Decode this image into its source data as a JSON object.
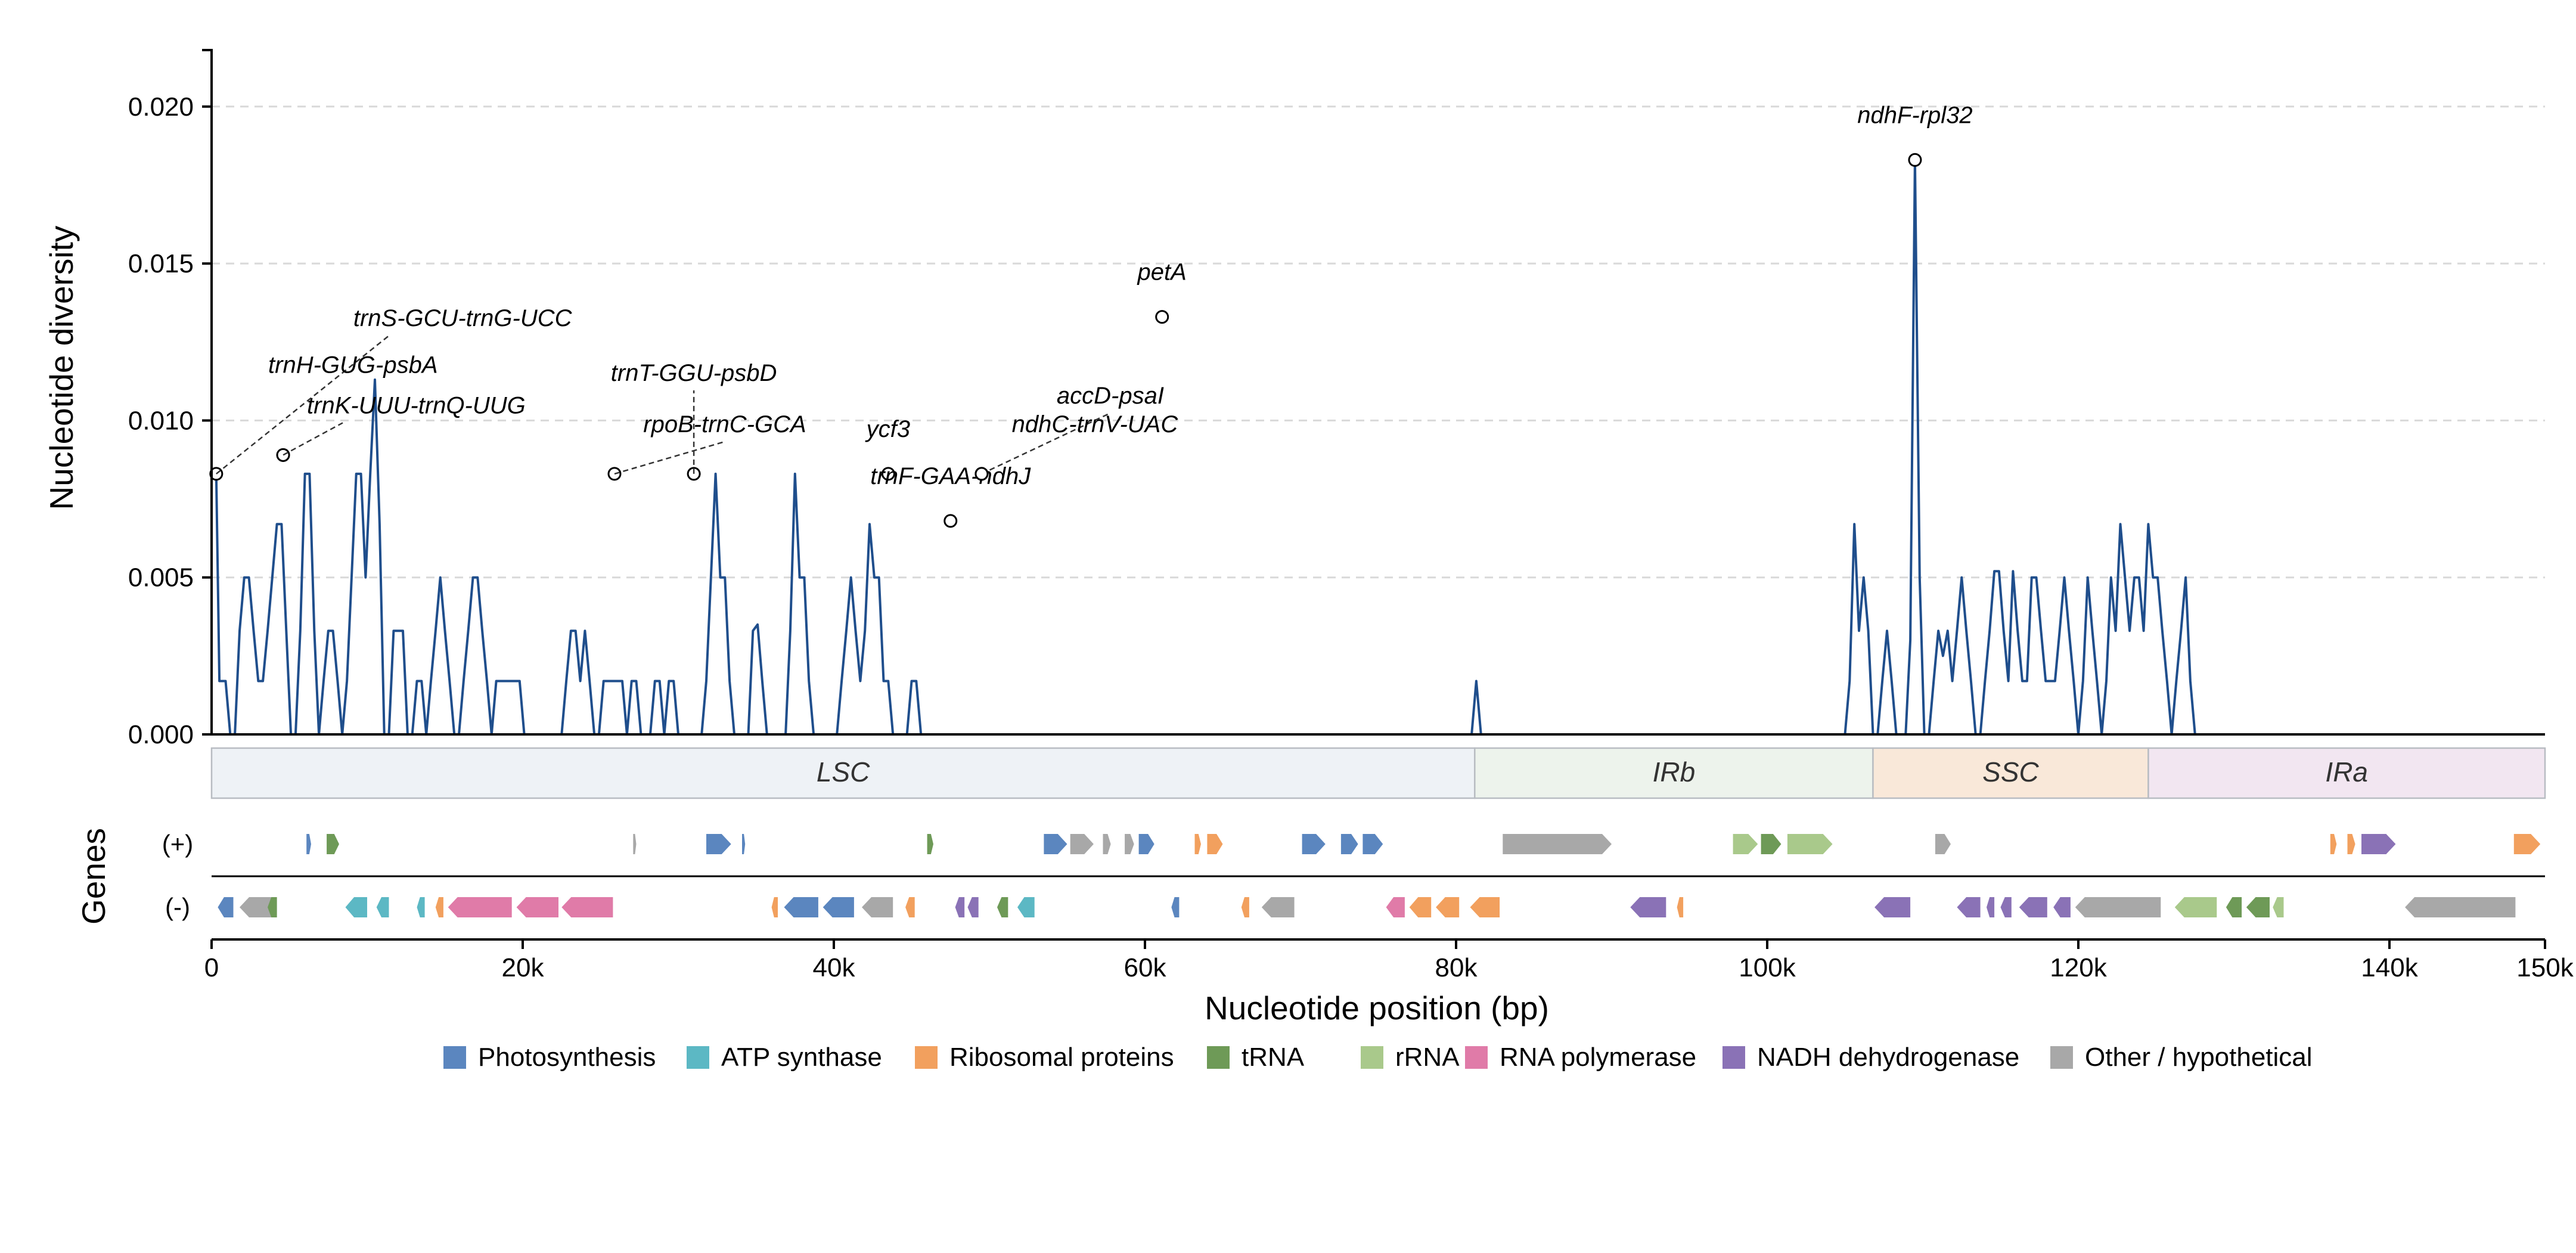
{
  "chart_data": {
    "type": "line",
    "ylabel": "Nucleotide diversity",
    "xlabel": "Nucleotide position (bp)",
    "gene_track_label": "Genes",
    "strand_labels": {
      "plus": "(+)",
      "minus": "(-)"
    },
    "xlim": [
      0,
      150000
    ],
    "ylim": [
      0,
      0.0218
    ],
    "y_ticks": [
      {
        "value": 0.0,
        "label": "0.000"
      },
      {
        "value": 0.005,
        "label": "0.005"
      },
      {
        "value": 0.01,
        "label": "0.010"
      },
      {
        "value": 0.015,
        "label": "0.015"
      },
      {
        "value": 0.02,
        "label": "0.020"
      }
    ],
    "x_ticks": [
      {
        "value": 0,
        "label": "0"
      },
      {
        "value": 20000,
        "label": "20k"
      },
      {
        "value": 40000,
        "label": "40k"
      },
      {
        "value": 60000,
        "label": "60k"
      },
      {
        "value": 80000,
        "label": "80k"
      },
      {
        "value": 100000,
        "label": "100k"
      },
      {
        "value": 120000,
        "label": "120k"
      },
      {
        "value": 140000,
        "label": "140k"
      },
      {
        "value": 150000,
        "label": "150k"
      }
    ],
    "y_grid": true,
    "line_color": "#1f4e8c",
    "series": [
      {
        "values": [
          [
            0,
            0.0083
          ],
          [
            300,
            0.0083
          ],
          [
            500,
            0.0017
          ],
          [
            900,
            0.0017
          ],
          [
            1200,
            0
          ],
          [
            1500,
            0
          ],
          [
            1800,
            0.0033
          ],
          [
            2100,
            0.005
          ],
          [
            2400,
            0.005
          ],
          [
            2700,
            0.0033
          ],
          [
            3000,
            0.0017
          ],
          [
            3300,
            0.0017
          ],
          [
            3600,
            0.0033
          ],
          [
            3900,
            0.005
          ],
          [
            4200,
            0.0067
          ],
          [
            4500,
            0.0067
          ],
          [
            4800,
            0.0033
          ],
          [
            5100,
            0
          ],
          [
            5400,
            0
          ],
          [
            5700,
            0.0033
          ],
          [
            6000,
            0.0083
          ],
          [
            6300,
            0.0083
          ],
          [
            6600,
            0.0033
          ],
          [
            6900,
            0
          ],
          [
            7200,
            0.0017
          ],
          [
            7500,
            0.0033
          ],
          [
            7800,
            0.0033
          ],
          [
            8100,
            0.0017
          ],
          [
            8400,
            0
          ],
          [
            8700,
            0.0017
          ],
          [
            9000,
            0.005
          ],
          [
            9300,
            0.0083
          ],
          [
            9600,
            0.0083
          ],
          [
            9900,
            0.005
          ],
          [
            10200,
            0.0083
          ],
          [
            10500,
            0.0113
          ],
          [
            10800,
            0.0067
          ],
          [
            11100,
            0
          ],
          [
            11400,
            0
          ],
          [
            11700,
            0.0033
          ],
          [
            12000,
            0.0033
          ],
          [
            12300,
            0.0033
          ],
          [
            12600,
            0
          ],
          [
            12900,
            0
          ],
          [
            13200,
            0.0017
          ],
          [
            13500,
            0.0017
          ],
          [
            13800,
            0
          ],
          [
            14100,
            0.0017
          ],
          [
            14400,
            0.0033
          ],
          [
            14700,
            0.005
          ],
          [
            15000,
            0.0033
          ],
          [
            15300,
            0.0017
          ],
          [
            15600,
            0
          ],
          [
            15900,
            0
          ],
          [
            16200,
            0.0017
          ],
          [
            16500,
            0.0033
          ],
          [
            16800,
            0.005
          ],
          [
            17100,
            0.005
          ],
          [
            17400,
            0.0033
          ],
          [
            17700,
            0.0017
          ],
          [
            18000,
            0
          ],
          [
            18300,
            0.0017
          ],
          [
            18600,
            0.0017
          ],
          [
            18900,
            0.0017
          ],
          [
            19200,
            0.0017
          ],
          [
            19500,
            0.0017
          ],
          [
            19800,
            0.0017
          ],
          [
            20100,
            0
          ],
          [
            20400,
            0
          ],
          [
            20700,
            0
          ],
          [
            21000,
            0
          ],
          [
            21300,
            0
          ],
          [
            21600,
            0
          ],
          [
            21900,
            0
          ],
          [
            22200,
            0
          ],
          [
            22500,
            0
          ],
          [
            22800,
            0.0017
          ],
          [
            23100,
            0.0033
          ],
          [
            23400,
            0.0033
          ],
          [
            23700,
            0.0017
          ],
          [
            24000,
            0.0033
          ],
          [
            24300,
            0.0017
          ],
          [
            24600,
            0
          ],
          [
            24900,
            0
          ],
          [
            25200,
            0.0017
          ],
          [
            25500,
            0.0017
          ],
          [
            25800,
            0.0017
          ],
          [
            26100,
            0.0017
          ],
          [
            26400,
            0.0017
          ],
          [
            26700,
            0
          ],
          [
            27000,
            0.0017
          ],
          [
            27300,
            0.0017
          ],
          [
            27600,
            0
          ],
          [
            27900,
            0
          ],
          [
            28200,
            0
          ],
          [
            28500,
            0.0017
          ],
          [
            28800,
            0.0017
          ],
          [
            29100,
            0
          ],
          [
            29400,
            0.0017
          ],
          [
            29700,
            0.0017
          ],
          [
            30000,
            0
          ],
          [
            30300,
            0
          ],
          [
            30600,
            0
          ],
          [
            30900,
            0
          ],
          [
            31200,
            0
          ],
          [
            31500,
            0
          ],
          [
            31800,
            0.0017
          ],
          [
            32100,
            0.005
          ],
          [
            32400,
            0.0083
          ],
          [
            32700,
            0.005
          ],
          [
            33000,
            0.005
          ],
          [
            33300,
            0.0017
          ],
          [
            33600,
            0
          ],
          [
            33900,
            0
          ],
          [
            34200,
            0
          ],
          [
            34500,
            0
          ],
          [
            34800,
            0.0033
          ],
          [
            35100,
            0.0035
          ],
          [
            35400,
            0.0017
          ],
          [
            35700,
            0
          ],
          [
            36000,
            0
          ],
          [
            36300,
            0
          ],
          [
            36600,
            0
          ],
          [
            36900,
            0
          ],
          [
            37200,
            0.0033
          ],
          [
            37500,
            0.0083
          ],
          [
            37800,
            0.005
          ],
          [
            38100,
            0.005
          ],
          [
            38400,
            0.0017
          ],
          [
            38700,
            0
          ],
          [
            39000,
            0
          ],
          [
            39300,
            0
          ],
          [
            39600,
            0
          ],
          [
            39900,
            0
          ],
          [
            40200,
            0
          ],
          [
            40500,
            0.0017
          ],
          [
            40800,
            0.0033
          ],
          [
            41100,
            0.005
          ],
          [
            41400,
            0.0033
          ],
          [
            41700,
            0.0017
          ],
          [
            42000,
            0.0033
          ],
          [
            42300,
            0.0067
          ],
          [
            42600,
            0.005
          ],
          [
            42900,
            0.005
          ],
          [
            43200,
            0.0017
          ],
          [
            43500,
            0.0017
          ],
          [
            43800,
            0
          ],
          [
            44100,
            0
          ],
          [
            44400,
            0
          ],
          [
            44700,
            0
          ],
          [
            45000,
            0.0017
          ],
          [
            45300,
            0.0017
          ],
          [
            45600,
            0
          ],
          [
            45900,
            0
          ],
          [
            46200,
            0
          ],
          [
            46500,
            0
          ],
          [
            46800,
            0
          ],
          [
            47100,
            0
          ],
          [
            47400,
            0
          ],
          [
            47700,
            0
          ],
          [
            48000,
            0
          ],
          [
            48300,
            0
          ],
          [
            48600,
            0
          ],
          [
            48900,
            0
          ],
          [
            49200,
            0
          ],
          [
            49500,
            0
          ],
          [
            49800,
            0
          ],
          [
            50100,
            0
          ],
          [
            50400,
            0
          ],
          [
            50700,
            0
          ],
          [
            51000,
            0
          ],
          [
            51300,
            0
          ],
          [
            51600,
            0
          ],
          [
            51900,
            0
          ],
          [
            52200,
            0
          ],
          [
            52500,
            0
          ],
          [
            52800,
            0
          ],
          [
            53100,
            0
          ],
          [
            53400,
            0
          ],
          [
            53700,
            0
          ],
          [
            54000,
            0
          ],
          [
            54300,
            0
          ],
          [
            54600,
            0
          ],
          [
            54900,
            0
          ],
          [
            55200,
            0
          ],
          [
            55500,
            0
          ],
          [
            55800,
            0
          ],
          [
            56100,
            0
          ],
          [
            56400,
            0
          ],
          [
            56700,
            0
          ],
          [
            57000,
            0
          ],
          [
            57300,
            0
          ],
          [
            57600,
            0
          ],
          [
            57900,
            0
          ],
          [
            58200,
            0
          ],
          [
            58500,
            0
          ],
          [
            58800,
            0
          ],
          [
            59100,
            0
          ],
          [
            59400,
            0
          ],
          [
            59700,
            0
          ],
          [
            60000,
            0
          ],
          [
            60300,
            0
          ],
          [
            60600,
            0
          ],
          [
            60900,
            0
          ],
          [
            61200,
            0
          ],
          [
            61500,
            0
          ],
          [
            61800,
            0
          ],
          [
            62100,
            0
          ],
          [
            62400,
            0
          ],
          [
            62700,
            0
          ],
          [
            63000,
            0
          ],
          [
            63300,
            0
          ],
          [
            63600,
            0
          ],
          [
            63900,
            0
          ],
          [
            64200,
            0
          ],
          [
            64500,
            0
          ],
          [
            64800,
            0
          ],
          [
            65100,
            0
          ],
          [
            65400,
            0
          ],
          [
            65700,
            0
          ],
          [
            66000,
            0
          ],
          [
            66300,
            0
          ],
          [
            66600,
            0
          ],
          [
            66900,
            0
          ],
          [
            67200,
            0
          ],
          [
            67500,
            0
          ],
          [
            67800,
            0
          ],
          [
            68100,
            0
          ],
          [
            68400,
            0
          ],
          [
            68700,
            0
          ],
          [
            69000,
            0
          ],
          [
            69300,
            0
          ],
          [
            69600,
            0
          ],
          [
            69900,
            0
          ],
          [
            70200,
            0
          ],
          [
            70500,
            0
          ],
          [
            70800,
            0
          ],
          [
            71100,
            0
          ],
          [
            71400,
            0
          ],
          [
            71700,
            0
          ],
          [
            72000,
            0
          ],
          [
            72300,
            0
          ],
          [
            72600,
            0
          ],
          [
            72900,
            0
          ],
          [
            73200,
            0
          ],
          [
            73500,
            0
          ],
          [
            73800,
            0
          ],
          [
            74100,
            0
          ],
          [
            74400,
            0
          ],
          [
            74700,
            0
          ],
          [
            75000,
            0
          ],
          [
            75300,
            0
          ],
          [
            75600,
            0
          ],
          [
            75900,
            0
          ],
          [
            76200,
            0
          ],
          [
            76500,
            0
          ],
          [
            76800,
            0
          ],
          [
            77100,
            0
          ],
          [
            77400,
            0
          ],
          [
            77700,
            0
          ],
          [
            78000,
            0
          ],
          [
            78300,
            0
          ],
          [
            78600,
            0
          ],
          [
            78900,
            0
          ],
          [
            79200,
            0
          ],
          [
            79500,
            0
          ],
          [
            79800,
            0
          ],
          [
            80100,
            0
          ],
          [
            80400,
            0
          ],
          [
            80700,
            0
          ],
          [
            81000,
            0
          ]
        ]
      }
    ],
    "annotations": [
      {
        "text": "trnS-GCU-trnG-UCC",
        "x": 300,
        "y": 0.0083
      },
      {
        "text": "trnH-GUG-psbA",
        "x": 4600,
        "y": 0.0089
      },
      {
        "text": "trnK-UUU-trnQ-UUG",
        "x": 4600,
        "y": 0.0089
      },
      {
        "text": "trnT-GGU-psbD",
        "x": 31000,
        "y": 0.0083
      },
      {
        "text": "rpoB-trnC-GCA",
        "x": 25900,
        "y": 0.0083
      },
      {
        "text": "ycf3",
        "x": 43500,
        "y": 0.0083
      },
      {
        "text": "trnF-GAA-ndhJ",
        "x": 47500,
        "y": 0.0068
      },
      {
        "text": "accD-psaI",
        "x": 49500,
        "y": 0.0083
      },
      {
        "text": "ndhC-trnV-UAC",
        "x": 49500,
        "y": 0.0083
      },
      {
        "text": "petA",
        "x": 61100,
        "y": 0.0133
      },
      {
        "text": "ndhF-rpl32",
        "x": 109500,
        "y": 0.0183
      }
    ],
    "regions": [
      {
        "name": "LSC",
        "start": 0,
        "end": 81200,
        "color": "#eef2f6"
      },
      {
        "name": "IRb",
        "start": 81200,
        "end": 106800,
        "color": "#edf3ec"
      },
      {
        "name": "SSC",
        "start": 106800,
        "end": 124500,
        "color": "#f9e8d9"
      },
      {
        "name": "IRa",
        "start": 124500,
        "end": 150000,
        "color": "#f2e6f1"
      }
    ],
    "legend": [
      {
        "label": "Photosynthesis",
        "color": "#5b86bf"
      },
      {
        "label": "ATP synthase",
        "color": "#5cb8c4"
      },
      {
        "label": "Ribosomal proteins",
        "color": "#f2a05e"
      },
      {
        "label": "tRNA",
        "color": "#6e9a57"
      },
      {
        "label": "rRNA",
        "color": "#a9c98b"
      },
      {
        "label": "RNA polymerase",
        "color": "#e07ba8"
      },
      {
        "label": "NADH dehydrogenase",
        "color": "#8a72b6"
      },
      {
        "label": "Other / hypothetical",
        "color": "#a8a8a8"
      }
    ]
  }
}
